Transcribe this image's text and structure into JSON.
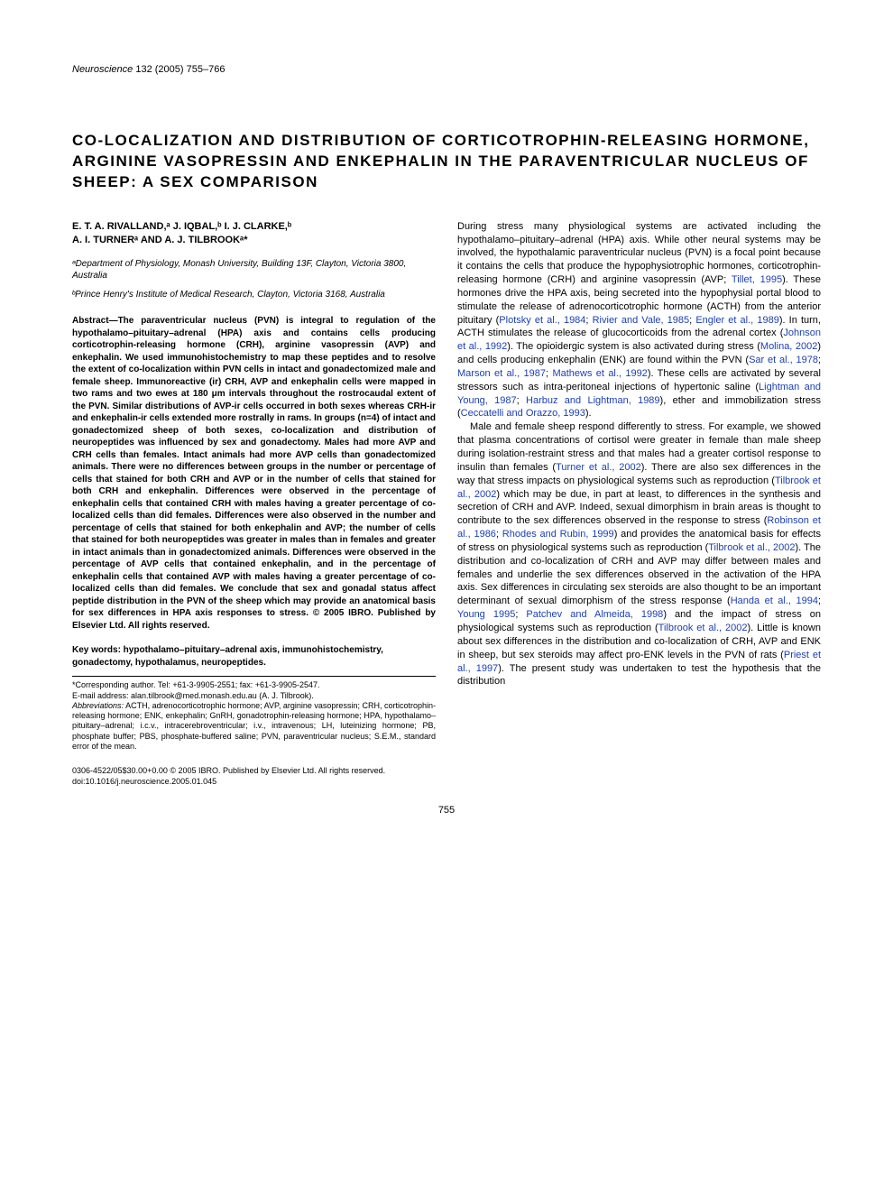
{
  "journal": {
    "name": "Neuroscience",
    "volume": "132",
    "year": "(2005)",
    "pages": "755–766"
  },
  "title": "CO-LOCALIZATION AND DISTRIBUTION OF CORTICOTROPHIN-RELEASING HORMONE, ARGININE VASOPRESSIN AND ENKEPHALIN IN THE PARAVENTRICULAR NUCLEUS OF SHEEP: A SEX COMPARISON",
  "authors_line1": "E. T. A. RIVALLAND,ᵃ J. IQBAL,ᵇ I. J. CLARKE,ᵇ",
  "authors_line2": "A. I. TURNERᵃ AND A. J. TILBROOKᵃ*",
  "affiliations": {
    "a": "ᵃDepartment of Physiology, Monash University, Building 13F, Clayton, Victoria 3800, Australia",
    "b": "ᵇPrince Henry's Institute of Medical Research, Clayton, Victoria 3168, Australia"
  },
  "abstract": "Abstract—The paraventricular nucleus (PVN) is integral to regulation of the hypothalamo–pituitary–adrenal (HPA) axis and contains cells producing corticotrophin-releasing hormone (CRH), arginine vasopressin (AVP) and enkephalin. We used immunohistochemistry to map these peptides and to resolve the extent of co-localization within PVN cells in intact and gonadectomized male and female sheep. Immunoreactive (ir) CRH, AVP and enkephalin cells were mapped in two rams and two ewes at 180 μm intervals throughout the rostrocaudal extent of the PVN. Similar distributions of AVP-ir cells occurred in both sexes whereas CRH-ir and enkephalin-ir cells extended more rostrally in rams. In groups (n=4) of intact and gonadectomized sheep of both sexes, co-localization and distribution of neuropeptides was influenced by sex and gonadectomy. Males had more AVP and CRH cells than females. Intact animals had more AVP cells than gonadectomized animals. There were no differences between groups in the number or percentage of cells that stained for both CRH and AVP or in the number of cells that stained for both CRH and enkephalin. Differences were observed in the percentage of enkephalin cells that contained CRH with males having a greater percentage of co-localized cells than did females. Differences were also observed in the number and percentage of cells that stained for both enkephalin and AVP; the number of cells that stained for both neuropeptides was greater in males than in females and greater in intact animals than in gonadectomized animals. Differences were observed in the percentage of AVP cells that contained enkephalin, and in the percentage of enkephalin cells that contained AVP with males having a greater percentage of co-localized cells than did females. We conclude that sex and gonadal status affect peptide distribution in the PVN of the sheep which may provide an anatomical basis for sex differences in HPA axis responses to stress. © 2005 IBRO. Published by Elsevier Ltd. All rights reserved.",
  "keywords": "Key words: hypothalamo–pituitary–adrenal axis, immunohistochemistry, gonadectomy, hypothalamus, neuropeptides.",
  "footnote": {
    "corr": "*Corresponding author. Tel: +61-3-9905-2551; fax: +61-3-9905-2547.",
    "email": "E-mail address: alan.tilbrook@med.monash.edu.au (A. J. Tilbrook).",
    "abbr_label": "Abbreviations:",
    "abbr": " ACTH, adrenocorticotrophic hormone; AVP, arginine vasopressin; CRH, corticotrophin-releasing hormone; ENK, enkephalin; GnRH, gonadotrophin-releasing hormone; HPA, hypothalamo–pituitary–adrenal; i.c.v., intracerebroventricular; i.v., intravenous; LH, luteinizing hormone; PB, phosphate buffer; PBS, phosphate-buffered saline; PVN, paraventricular nucleus; S.E.M., standard error of the mean."
  },
  "body": {
    "p1a": "During stress many physiological systems are activated including the hypothalamo–pituitary–adrenal (HPA) axis. While other neural systems may be involved, the hypothalamic paraventricular nucleus (PVN) is a focal point because it contains the cells that produce the hypophysiotrophic hormones, corticotrophin-releasing hormone (CRH) and arginine vasopressin (AVP; ",
    "c1": "Tillet, 1995",
    "p1b": "). These hormones drive the HPA axis, being secreted into the hypophysial portal blood to stimulate the release of adrenocorticotrophic hormone (ACTH) from the anterior pituitary (",
    "c2": "Plotsky et al., 1984",
    "p1c": "; ",
    "c3": "Rivier and Vale, 1985",
    "p1d": "; ",
    "c4": "Engler et al., 1989",
    "p1e": "). In turn, ACTH stimulates the release of glucocorticoids from the adrenal cortex (",
    "c5": "Johnson et al., 1992",
    "p1f": "). The opioidergic system is also activated during stress (",
    "c6": "Molina, 2002",
    "p1g": ") and cells producing enkephalin (ENK) are found within the PVN (",
    "c7": "Sar et al., 1978",
    "p1h": "; ",
    "c8": "Marson et al., 1987",
    "p1i": "; ",
    "c9": "Mathews et al., 1992",
    "p1j": "). These cells are activated by several stressors such as intra-peritoneal injections of hypertonic saline (",
    "c10": "Lightman and Young, 1987",
    "p1k": "; ",
    "c11": "Harbuz and Lightman, 1989",
    "p1l": "), ether and immobilization stress (",
    "c12": "Ceccatelli and Orazzo, 1993",
    "p1m": ").",
    "p2a": "Male and female sheep respond differently to stress. For example, we showed that plasma concentrations of cortisol were greater in female than male sheep during isolation-restraint stress and that males had a greater cortisol response to insulin than females (",
    "c13": "Turner et al., 2002",
    "p2b": "). There are also sex differences in the way that stress impacts on physiological systems such as reproduction (",
    "c14": "Tilbrook et al., 2002",
    "p2c": ") which may be due, in part at least, to differences in the synthesis and secretion of CRH and AVP. Indeed, sexual dimorphism in brain areas is thought to contribute to the sex differences observed in the response to stress (",
    "c15": "Robinson et al., 1986",
    "p2d": "; ",
    "c16": "Rhodes and Rubin, 1999",
    "p2e": ") and provides the anatomical basis for effects of stress on physiological systems such as reproduction (",
    "c17": "Tilbrook et al., 2002",
    "p2f": "). The distribution and co-localization of CRH and AVP may differ between males and females and underlie the sex differences observed in the activation of the HPA axis. Sex differences in circulating sex steroids are also thought to be an important determinant of sexual dimorphism of the stress response (",
    "c18": "Handa et al., 1994",
    "p2g": "; ",
    "c19": "Young 1995",
    "p2h": "; ",
    "c20": "Patchev and Almeida, 1998",
    "p2i": ") and the impact of stress on physiological systems such as reproduction (",
    "c21": "Tilbrook et al., 2002",
    "p2j": "). Little is known about sex differences in the distribution and co-localization of CRH, AVP and ENK in sheep, but sex steroids may affect pro-ENK levels in the PVN of rats (",
    "c22": "Priest et al., 1997",
    "p2k": "). The present study was undertaken to test the hypothesis that the distribution"
  },
  "bottom": {
    "line1": "0306-4522/05$30.00+0.00 © 2005 IBRO. Published by Elsevier Ltd. All rights reserved.",
    "line2": "doi:10.1016/j.neuroscience.2005.01.045"
  },
  "page_number": "755",
  "colors": {
    "text": "#000000",
    "citation": "#1a3fb5",
    "background": "#ffffff"
  },
  "typography": {
    "title_fontsize": 17,
    "body_fontsize": 11,
    "abstract_fontsize": 10,
    "footnote_fontsize": 9,
    "font_family": "Arial, Helvetica, sans-serif"
  }
}
